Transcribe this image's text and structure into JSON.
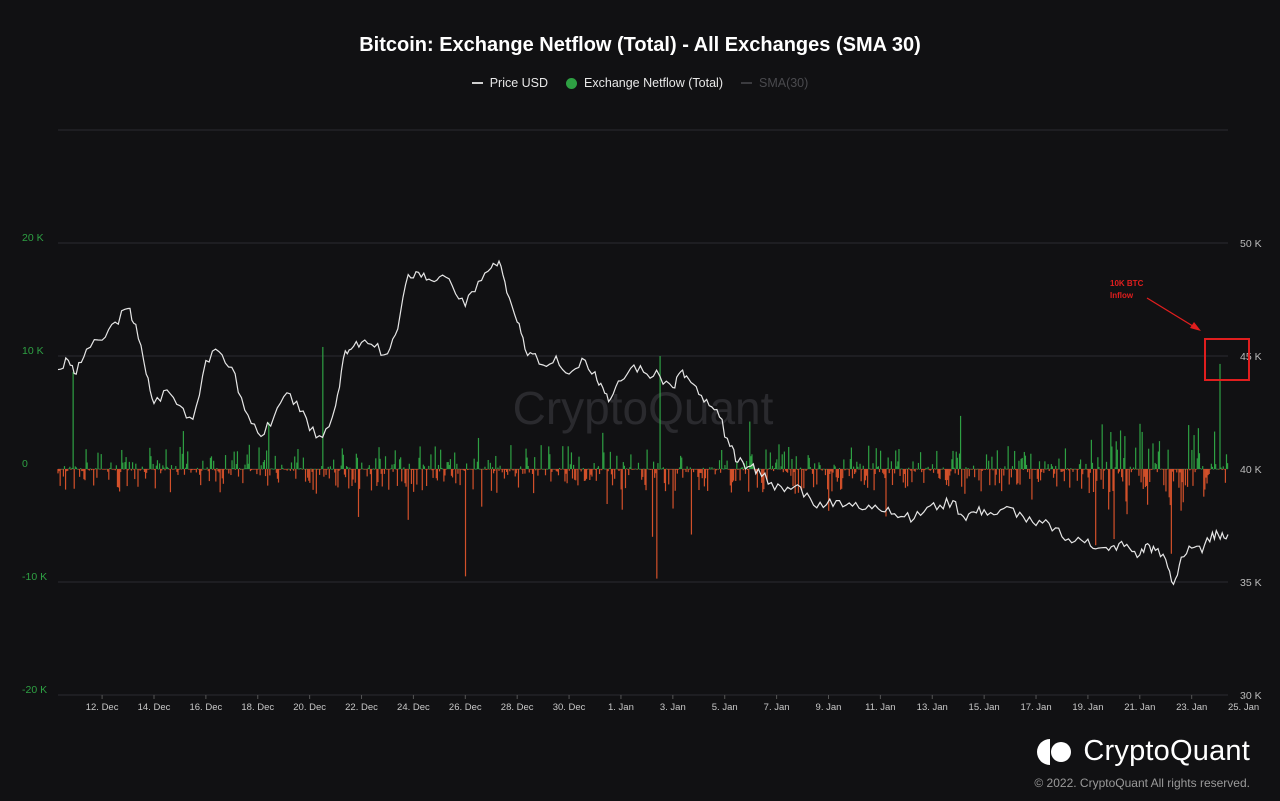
{
  "title": "Bitcoin: Exchange Netflow (Total) - All Exchanges (SMA 30)",
  "legend": [
    {
      "label": "Price USD",
      "marker": "line",
      "color": "#d0d0d0",
      "muted": false
    },
    {
      "label": "Exchange Netflow (Total)",
      "marker": "dot",
      "color": "#2ea043",
      "muted": false
    },
    {
      "label": "SMA(30)",
      "marker": "line",
      "color": "#3b3b3f",
      "muted": true
    }
  ],
  "watermark": "CryptoQuant",
  "annotation": {
    "text": [
      "10K BTC",
      "Inflow"
    ],
    "color": "#e01e1e"
  },
  "brand": {
    "name": "CryptoQuant",
    "copyright": "© 2022. CryptoQuant All rights reserved."
  },
  "chart_data": {
    "type": "bar",
    "x_tick_labels": [
      "12. Dec",
      "14. Dec",
      "16. Dec",
      "18. Dec",
      "20. Dec",
      "22. Dec",
      "24. Dec",
      "26. Dec",
      "28. Dec",
      "30. Dec",
      "1. Jan",
      "3. Jan",
      "5. Jan",
      "7. Jan",
      "9. Jan",
      "11. Jan",
      "13. Jan",
      "15. Jan",
      "17. Jan",
      "19. Jan",
      "21. Jan",
      "23. Jan",
      "25. Jan"
    ],
    "x_range_days": [
      -1.7,
      43.4
    ],
    "left_axis": {
      "name": "Exchange Netflow",
      "ticks": [
        "20 K",
        "10 K",
        "0",
        "-10 K",
        "-20 K"
      ],
      "range": [
        -20000,
        30000
      ],
      "color": "#2ea043"
    },
    "right_axis": {
      "name": "Price USD",
      "ticks": [
        "50 K",
        "45 K",
        "40 K",
        "35 K",
        "30 K"
      ],
      "range": [
        30000,
        55000
      ],
      "color": "#bbbbbb"
    },
    "grid": true,
    "netflow_spikes": [
      {
        "day": -1.1,
        "value": 8600
      },
      {
        "day": 2.1,
        "value": 300
      },
      {
        "day": 8.5,
        "value": 10800
      },
      {
        "day": 11.8,
        "value": -4500
      },
      {
        "day": 14.0,
        "value": -9500
      },
      {
        "day": 17.2,
        "value": 2000
      },
      {
        "day": 19.3,
        "value": 3200
      },
      {
        "day": 21.2,
        "value": -6000
      },
      {
        "day": 21.5,
        "value": 10000
      },
      {
        "day": 21.4,
        "value": -9700
      },
      {
        "day": 22.0,
        "value": -3500
      },
      {
        "day": 22.7,
        "value": -5800
      },
      {
        "day": 28.0,
        "value": -3700
      },
      {
        "day": 30.2,
        "value": -4200
      },
      {
        "day": 33.1,
        "value": 4700
      },
      {
        "day": 39.0,
        "value": -6200
      },
      {
        "day": 39.5,
        "value": -4000
      },
      {
        "day": 40.0,
        "value": 4000
      },
      {
        "day": 41.2,
        "value": -7500
      },
      {
        "day": 42.1,
        "value": 3000
      },
      {
        "day": 43.1,
        "value": 9300
      }
    ],
    "price_series": [
      {
        "day": -1.7,
        "value": 44400
      },
      {
        "day": -1.3,
        "value": 44800
      },
      {
        "day": -1.0,
        "value": 44200
      },
      {
        "day": -0.6,
        "value": 45300
      },
      {
        "day": 0.0,
        "value": 45700
      },
      {
        "day": 0.5,
        "value": 46500
      },
      {
        "day": 1.0,
        "value": 47100
      },
      {
        "day": 1.3,
        "value": 46400
      },
      {
        "day": 1.7,
        "value": 44200
      },
      {
        "day": 2.0,
        "value": 42900
      },
      {
        "day": 2.5,
        "value": 43500
      },
      {
        "day": 3.0,
        "value": 42800
      },
      {
        "day": 3.5,
        "value": 42200
      },
      {
        "day": 4.0,
        "value": 44800
      },
      {
        "day": 4.5,
        "value": 45200
      },
      {
        "day": 5.0,
        "value": 44500
      },
      {
        "day": 5.5,
        "value": 42600
      },
      {
        "day": 6.0,
        "value": 41600
      },
      {
        "day": 6.5,
        "value": 41900
      },
      {
        "day": 7.0,
        "value": 43200
      },
      {
        "day": 7.5,
        "value": 43000
      },
      {
        "day": 8.0,
        "value": 41700
      },
      {
        "day": 8.5,
        "value": 41400
      },
      {
        "day": 9.0,
        "value": 42800
      },
      {
        "day": 9.3,
        "value": 44900
      },
      {
        "day": 9.6,
        "value": 45300
      },
      {
        "day": 10.0,
        "value": 45600
      },
      {
        "day": 10.5,
        "value": 45400
      },
      {
        "day": 11.0,
        "value": 45100
      },
      {
        "day": 11.4,
        "value": 46200
      },
      {
        "day": 11.8,
        "value": 48600
      },
      {
        "day": 12.2,
        "value": 48700
      },
      {
        "day": 12.6,
        "value": 48400
      },
      {
        "day": 13.0,
        "value": 48500
      },
      {
        "day": 13.5,
        "value": 48100
      },
      {
        "day": 14.0,
        "value": 47200
      },
      {
        "day": 14.5,
        "value": 48300
      },
      {
        "day": 15.0,
        "value": 48900
      },
      {
        "day": 15.3,
        "value": 49200
      },
      {
        "day": 15.6,
        "value": 47800
      },
      {
        "day": 16.0,
        "value": 46500
      },
      {
        "day": 16.3,
        "value": 45300
      },
      {
        "day": 16.7,
        "value": 45100
      },
      {
        "day": 17.0,
        "value": 44600
      },
      {
        "day": 17.5,
        "value": 45000
      },
      {
        "day": 18.0,
        "value": 44200
      },
      {
        "day": 18.5,
        "value": 44900
      },
      {
        "day": 19.0,
        "value": 44300
      },
      {
        "day": 19.3,
        "value": 43600
      },
      {
        "day": 19.6,
        "value": 43100
      },
      {
        "day": 20.0,
        "value": 43900
      },
      {
        "day": 20.5,
        "value": 44600
      },
      {
        "day": 21.0,
        "value": 44200
      },
      {
        "day": 21.5,
        "value": 44100
      },
      {
        "day": 22.0,
        "value": 43600
      },
      {
        "day": 22.3,
        "value": 44300
      },
      {
        "day": 22.6,
        "value": 44000
      },
      {
        "day": 23.0,
        "value": 43300
      },
      {
        "day": 23.4,
        "value": 42800
      },
      {
        "day": 23.8,
        "value": 42300
      },
      {
        "day": 24.2,
        "value": 41000
      },
      {
        "day": 24.5,
        "value": 40300
      },
      {
        "day": 24.9,
        "value": 40100
      },
      {
        "day": 25.3,
        "value": 40000
      },
      {
        "day": 25.8,
        "value": 39400
      },
      {
        "day": 26.3,
        "value": 39000
      },
      {
        "day": 26.8,
        "value": 39300
      },
      {
        "day": 27.3,
        "value": 38700
      },
      {
        "day": 27.8,
        "value": 38300
      },
      {
        "day": 28.3,
        "value": 38600
      },
      {
        "day": 28.8,
        "value": 38500
      },
      {
        "day": 29.3,
        "value": 38200
      },
      {
        "day": 29.8,
        "value": 38400
      },
      {
        "day": 30.3,
        "value": 38300
      },
      {
        "day": 30.8,
        "value": 37900
      },
      {
        "day": 31.3,
        "value": 37800
      },
      {
        "day": 31.8,
        "value": 38300
      },
      {
        "day": 32.3,
        "value": 38400
      },
      {
        "day": 32.8,
        "value": 38600
      },
      {
        "day": 33.2,
        "value": 37900
      },
      {
        "day": 33.6,
        "value": 38100
      },
      {
        "day": 34.0,
        "value": 38200
      },
      {
        "day": 34.5,
        "value": 38000
      },
      {
        "day": 35.0,
        "value": 38300
      },
      {
        "day": 35.5,
        "value": 37900
      },
      {
        "day": 36.0,
        "value": 37500
      },
      {
        "day": 36.5,
        "value": 37600
      },
      {
        "day": 37.0,
        "value": 37000
      },
      {
        "day": 37.5,
        "value": 36800
      },
      {
        "day": 38.0,
        "value": 36900
      },
      {
        "day": 38.4,
        "value": 36500
      },
      {
        "day": 38.8,
        "value": 36400
      },
      {
        "day": 39.2,
        "value": 36700
      },
      {
        "day": 39.6,
        "value": 36500
      },
      {
        "day": 40.0,
        "value": 36200
      },
      {
        "day": 40.3,
        "value": 36700
      },
      {
        "day": 40.6,
        "value": 36400
      },
      {
        "day": 41.0,
        "value": 36000
      },
      {
        "day": 41.3,
        "value": 34900
      },
      {
        "day": 41.6,
        "value": 36100
      },
      {
        "day": 42.0,
        "value": 36500
      },
      {
        "day": 42.4,
        "value": 36300
      },
      {
        "day": 42.8,
        "value": 37200
      },
      {
        "day": 43.1,
        "value": 36900
      },
      {
        "day": 43.4,
        "value": 37100
      }
    ]
  }
}
